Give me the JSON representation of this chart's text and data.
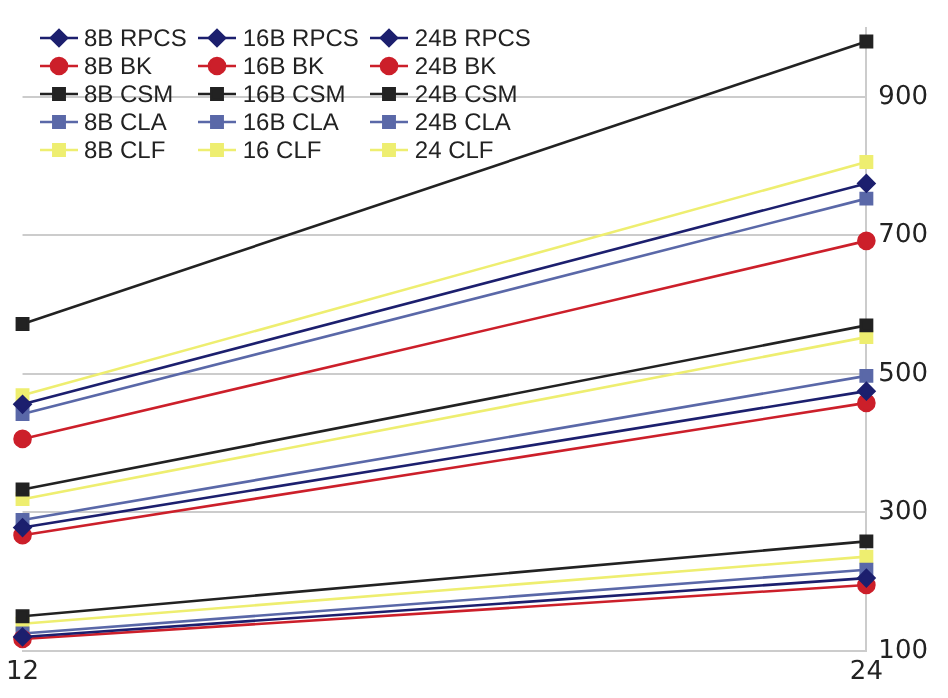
{
  "chart_data": {
    "type": "line",
    "x": [
      12,
      24
    ],
    "xlim": [
      12,
      24
    ],
    "xticks": [
      12,
      24
    ],
    "ylim": [
      100,
      1000
    ],
    "yticks": [
      100,
      300,
      500,
      700,
      900
    ],
    "grid": "y",
    "legend": "top left",
    "line_style": "solid",
    "series": [
      {
        "name": "8B RPCS",
        "color": "#1c1f6e",
        "marker": "diamond",
        "values": [
          120,
          205
        ]
      },
      {
        "name": "16B RPCS",
        "color": "#1c1f6e",
        "marker": "diamond",
        "values": [
          278,
          475
        ]
      },
      {
        "name": "24B RPCS",
        "color": "#1c1f6e",
        "marker": "diamond",
        "values": [
          456,
          775
        ]
      },
      {
        "name": "8B BK",
        "color": "#cc1f2a",
        "marker": "circle",
        "values": [
          117,
          195
        ]
      },
      {
        "name": "16B BK",
        "color": "#cc1f2a",
        "marker": "circle",
        "values": [
          267,
          458
        ]
      },
      {
        "name": "24B BK",
        "color": "#cc1f2a",
        "marker": "circle",
        "values": [
          406,
          692
        ]
      },
      {
        "name": "8B CSM",
        "color": "#222222",
        "marker": "square",
        "values": [
          150,
          258
        ]
      },
      {
        "name": "16B CSM",
        "color": "#222222",
        "marker": "square",
        "values": [
          333,
          570
        ]
      },
      {
        "name": "24B CSM",
        "color": "#222222",
        "marker": "square",
        "values": [
          572,
          980
        ]
      },
      {
        "name": "8B CLA",
        "color": "#5a68a8",
        "marker": "square",
        "values": [
          125,
          217
        ]
      },
      {
        "name": "16B CLA",
        "color": "#5a68a8",
        "marker": "square",
        "values": [
          289,
          497
        ]
      },
      {
        "name": "24B CLA",
        "color": "#5a68a8",
        "marker": "square",
        "values": [
          442,
          753
        ]
      },
      {
        "name": "8B CLF",
        "color": "#eeee70",
        "marker": "square",
        "values": [
          139,
          236
        ]
      },
      {
        "name": "16 CLF",
        "color": "#eeee70",
        "marker": "square",
        "values": [
          319,
          553
        ]
      },
      {
        "name": "24 CLF",
        "color": "#eeee70",
        "marker": "square",
        "values": [
          469,
          806
        ]
      }
    ]
  }
}
